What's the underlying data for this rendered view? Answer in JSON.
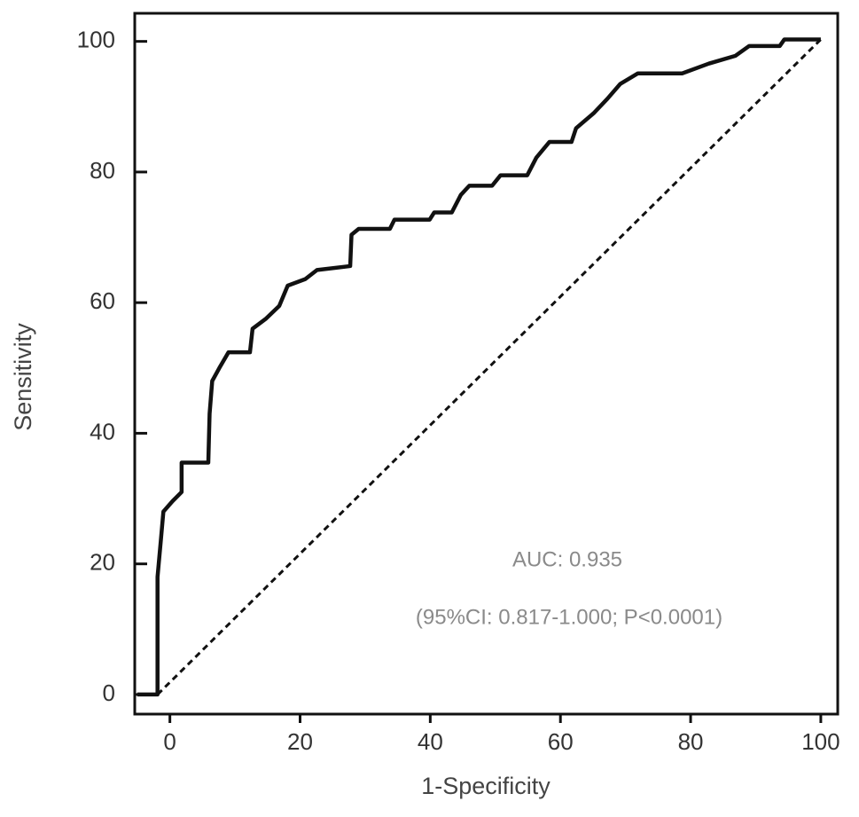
{
  "chart_data": {
    "type": "line",
    "x_label": "1-Specificity",
    "y_label": "Sensitivity",
    "annotations": [
      "AUC: 0.935",
      "(95%CI: 0.817-1.000; P<0.0001)"
    ],
    "xlim": [
      -5.4,
      102.6
    ],
    "ylim": [
      -3,
      104.3
    ],
    "xticks": [
      0,
      20,
      40,
      60,
      80,
      100
    ],
    "yticks": [
      0,
      20,
      40,
      60,
      80,
      100
    ],
    "series": [
      {
        "color": "#111111",
        "dash": false,
        "x": [
          -5,
          -1.9,
          -1.9,
          -1.4,
          -1,
          0.4,
          1.8,
          1.8,
          5.9,
          6.1,
          6.5,
          7.6,
          9,
          12.3,
          12.7,
          14.7,
          16.8,
          18.1,
          20.8,
          22.6,
          27.7,
          27.9,
          29,
          33.8,
          34.5,
          39.9,
          40.6,
          43.3,
          44.7,
          46,
          49.5,
          50.8,
          54.9,
          56.3,
          58.3,
          61.7,
          62.4,
          65.1,
          67.2,
          69.2,
          71.9,
          78.7,
          82.8,
          86.9,
          89,
          93.7,
          94.4,
          100
        ],
        "values": [
          0,
          0,
          18,
          23.5,
          28,
          29.6,
          31,
          35.5,
          35.5,
          43,
          48,
          50,
          52.4,
          52.4,
          56,
          57.5,
          59.5,
          62.6,
          63.6,
          65,
          65.6,
          70.4,
          71.3,
          71.3,
          72.7,
          72.7,
          73.8,
          73.8,
          76.5,
          77.9,
          77.9,
          79.5,
          79.5,
          82.2,
          84.6,
          84.6,
          86.7,
          89,
          91.2,
          93.5,
          95.1,
          95.1,
          96.6,
          97.8,
          99.3,
          99.3,
          100.3,
          100.3
        ]
      },
      {
        "color": "#111111",
        "dash": true,
        "x": [
          -1.9,
          100
        ],
        "values": [
          0,
          100.3
        ]
      }
    ]
  }
}
